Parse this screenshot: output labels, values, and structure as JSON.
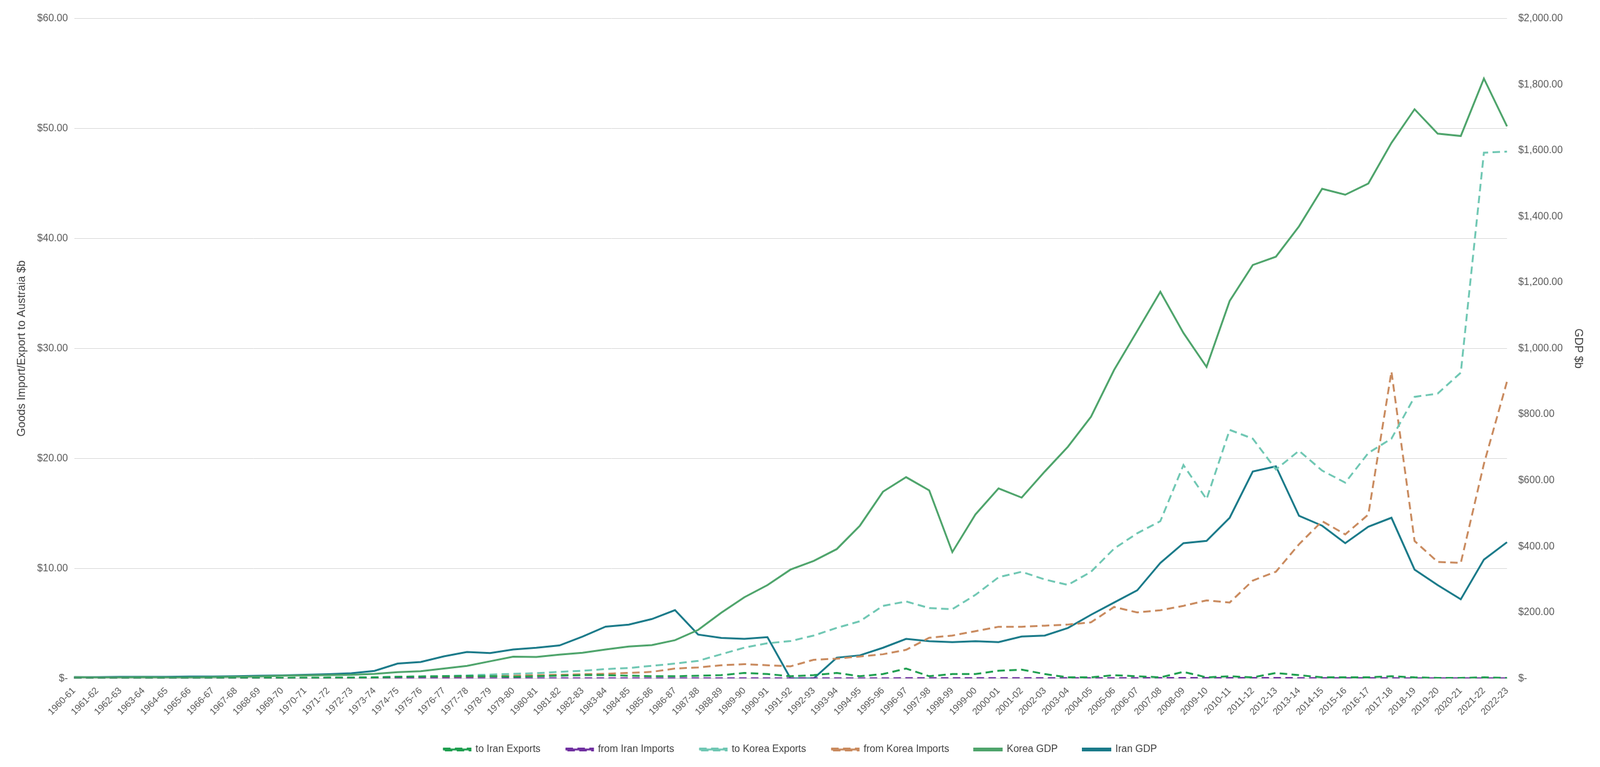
{
  "chart_data": {
    "type": "line",
    "y_label": "Goods Import/Export to Austraia $b",
    "y2_label": "GDP $b",
    "categories": [
      "1960-61",
      "1961-62",
      "1962-63",
      "1963-64",
      "1964-65",
      "1965-66",
      "1966-67",
      "1967-68",
      "1968-69",
      "1969-70",
      "1970-71",
      "1971-72",
      "1972-73",
      "1973-74",
      "1974-75",
      "1975-76",
      "1976-77",
      "1977-78",
      "1978-79",
      "1979-80",
      "1980-81",
      "1981-82",
      "1982-83",
      "1983-84",
      "1984-85",
      "1985-86",
      "1986-87",
      "1987-88",
      "1988-89",
      "1989-90",
      "1990-91",
      "1991-92",
      "1992-93",
      "1993-94",
      "1994-95",
      "1995-96",
      "1996-97",
      "1997-98",
      "1998-99",
      "1999-00",
      "2000-01",
      "2001-02",
      "2002-03",
      "2003-04",
      "2004-05",
      "2005-06",
      "2006-07",
      "2007-08",
      "2008-09",
      "2009-10",
      "2010-11",
      "2011-12",
      "2012-13",
      "2013-14",
      "2014-15",
      "2015-16",
      "2016-17",
      "2017-18",
      "2018-19",
      "2019-20",
      "2020-21",
      "2021-22",
      "2022-23"
    ],
    "ylim": [
      0,
      60
    ],
    "yticks": [
      {
        "value": 0,
        "label": "$-"
      },
      {
        "value": 10,
        "label": "$10.00"
      },
      {
        "value": 20,
        "label": "$20.00"
      },
      {
        "value": 30,
        "label": "$30.00"
      },
      {
        "value": 40,
        "label": "$40.00"
      },
      {
        "value": 50,
        "label": "$50.00"
      },
      {
        "value": 60,
        "label": "$60.00"
      }
    ],
    "y2lim": [
      0,
      2000
    ],
    "y2ticks": [
      {
        "value": 0,
        "label": "$-"
      },
      {
        "value": 200,
        "label": "$200.00"
      },
      {
        "value": 400,
        "label": "$400.00"
      },
      {
        "value": 600,
        "label": "$600.00"
      },
      {
        "value": 800,
        "label": "$800.00"
      },
      {
        "value": 1000,
        "label": "$1,000.00"
      },
      {
        "value": 1200,
        "label": "$1,200.00"
      },
      {
        "value": 1400,
        "label": "$1,400.00"
      },
      {
        "value": 1600,
        "label": "$1,600.00"
      },
      {
        "value": 1800,
        "label": "$1,800.00"
      },
      {
        "value": 2000,
        "label": "$2,000.00"
      }
    ],
    "grid": true,
    "legend": "bottom",
    "series": [
      {
        "name": "to Iran Exports",
        "color": "#1e9e4f",
        "line_style": "dashed",
        "values": [
          0.01,
          0.01,
          0.01,
          0.02,
          0.02,
          0.02,
          0.03,
          0.03,
          0.04,
          0.05,
          0.06,
          0.07,
          0.08,
          0.1,
          0.15,
          0.18,
          0.2,
          0.22,
          0.2,
          0.15,
          0.2,
          0.25,
          0.3,
          0.3,
          0.25,
          0.2,
          0.2,
          0.25,
          0.3,
          0.5,
          0.4,
          0.2,
          0.3,
          0.5,
          0.2,
          0.4,
          0.9,
          0.2,
          0.4,
          0.4,
          0.7,
          0.8,
          0.4,
          0.1,
          0.1,
          0.3,
          0.2,
          0.1,
          0.6,
          0.1,
          0.2,
          0.1,
          0.5,
          0.3,
          0.1,
          0.1,
          0.1,
          0.2,
          0.1,
          0.05,
          0.05,
          0.1,
          0.05
        ]
      },
      {
        "name": "from Iran Imports",
        "color": "#7030a0",
        "line_style": "dashed",
        "values": [
          0,
          0,
          0,
          0,
          0,
          0,
          0,
          0,
          0,
          0,
          0,
          0.01,
          0.01,
          0.01,
          0.02,
          0.02,
          0.02,
          0.02,
          0.02,
          0.02,
          0.02,
          0.02,
          0.02,
          0.02,
          0.02,
          0.02,
          0.02,
          0.02,
          0.02,
          0.02,
          0.02,
          0.02,
          0.02,
          0.02,
          0.02,
          0.02,
          0.03,
          0.03,
          0.03,
          0.03,
          0.03,
          0.03,
          0.03,
          0.03,
          0.04,
          0.04,
          0.04,
          0.05,
          0.05,
          0.05,
          0.05,
          0.05,
          0.05,
          0.04,
          0.04,
          0.03,
          0.03,
          0.03,
          0.02,
          0.02,
          0.02,
          0.02,
          0.02
        ]
      },
      {
        "name": "to Korea Exports",
        "color": "#6fc7b3",
        "line_style": "dashed",
        "values": [
          0.01,
          0.01,
          0.01,
          0.02,
          0.02,
          0.02,
          0.03,
          0.03,
          0.04,
          0.05,
          0.06,
          0.07,
          0.08,
          0.1,
          0.15,
          0.18,
          0.22,
          0.28,
          0.35,
          0.42,
          0.48,
          0.6,
          0.7,
          0.85,
          0.95,
          1.15,
          1.35,
          1.6,
          2.2,
          2.8,
          3.2,
          3.4,
          3.9,
          4.6,
          5.2,
          6.6,
          7.0,
          6.4,
          6.3,
          7.6,
          9.2,
          9.7,
          9.0,
          8.5,
          9.7,
          11.8,
          13.2,
          14.3,
          19.4,
          16.3,
          22.6,
          21.8,
          19.0,
          20.7,
          18.9,
          17.8,
          20.5,
          21.8,
          25.6,
          25.9,
          27.8,
          47.8,
          47.9
        ]
      },
      {
        "name": "from Korea Imports",
        "color": "#c98a5e",
        "line_style": "dashed",
        "values": [
          0,
          0,
          0,
          0,
          0,
          0,
          0.01,
          0.01,
          0.01,
          0.02,
          0.02,
          0.03,
          0.04,
          0.06,
          0.08,
          0.1,
          0.12,
          0.15,
          0.2,
          0.25,
          0.3,
          0.33,
          0.38,
          0.42,
          0.5,
          0.6,
          0.9,
          1.0,
          1.2,
          1.3,
          1.2,
          1.1,
          1.7,
          1.8,
          2.0,
          2.2,
          2.6,
          3.7,
          3.9,
          4.3,
          4.7,
          4.7,
          4.8,
          4.9,
          5.1,
          6.5,
          6.0,
          6.2,
          6.6,
          7.1,
          6.9,
          8.9,
          9.7,
          12.2,
          14.3,
          13.1,
          14.9,
          27.9,
          12.5,
          10.6,
          10.5,
          19.5,
          27.0
        ]
      },
      {
        "name": "Korea GDP",
        "color": "#4ea46b",
        "line_style": "solid",
        "axis": "y2",
        "values": [
          4,
          3,
          3,
          4,
          3,
          3,
          4,
          5,
          6,
          8,
          9,
          10,
          11,
          14,
          19,
          22,
          30,
          38,
          52,
          66,
          65,
          72,
          78,
          88,
          97,
          101,
          116,
          147,
          199,
          246,
          283,
          330,
          356,
          392,
          463,
          566,
          610,
          570,
          383,
          497,
          576,
          548,
          627,
          702,
          793,
          935,
          1053,
          1172,
          1047,
          944,
          1144,
          1253,
          1278,
          1370,
          1484,
          1466,
          1500,
          1623,
          1725,
          1651,
          1644,
          1818,
          1673
        ]
      },
      {
        "name": "Iran GDP",
        "color": "#1a7a89",
        "line_style": "solid",
        "axis": "y2",
        "values": [
          4,
          4,
          5,
          5,
          5,
          6,
          6,
          7,
          8,
          9,
          11,
          13,
          16,
          23,
          45,
          50,
          67,
          80,
          77,
          88,
          93,
          100,
          127,
          157,
          163,
          180,
          207,
          133,
          123,
          120,
          125,
          0,
          0,
          63,
          70,
          93,
          120,
          113,
          110,
          113,
          110,
          127,
          130,
          153,
          193,
          230,
          267,
          350,
          410,
          417,
          487,
          627,
          643,
          493,
          463,
          410,
          460,
          487,
          330,
          283,
          240,
          360,
          413
        ]
      }
    ]
  }
}
